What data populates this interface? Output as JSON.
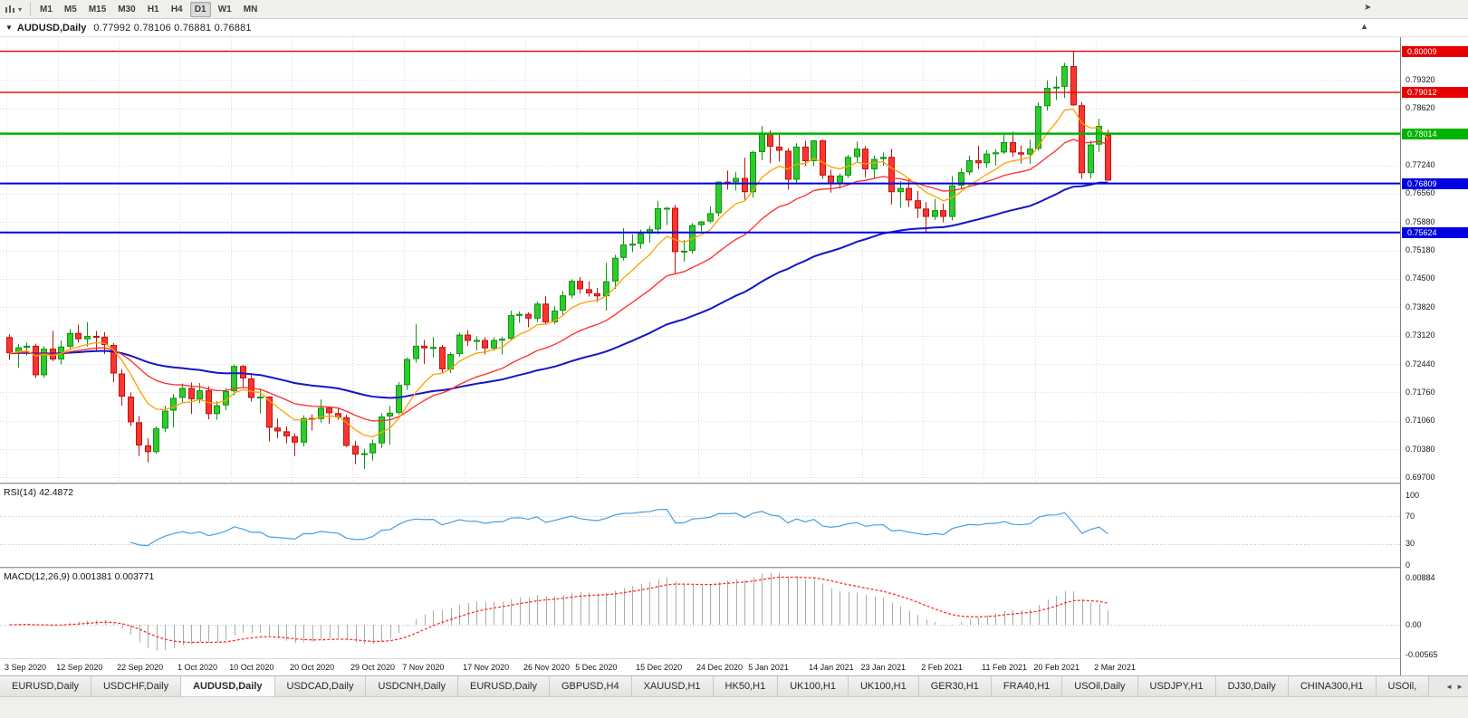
{
  "toolbar": {
    "timeframes": [
      "M1",
      "M5",
      "M15",
      "M30",
      "H1",
      "H4",
      "D1",
      "W1",
      "MN"
    ],
    "active_timeframe": "D1"
  },
  "icons": {
    "caret_down": "▾",
    "chart_menu_arrow": "▼",
    "titlebar_button": "▲",
    "chart_shift": "➤",
    "tab_scroll_left": "◄",
    "tab_scroll_right": "►"
  },
  "chart": {
    "symbol_title": "AUDUSD,Daily",
    "ohlc_text": "0.77992 0.78106 0.76881 0.76881"
  },
  "price_axis": {
    "ticks": [
      {
        "label": "0.79320",
        "value": 0.7932
      },
      {
        "label": "0.78620",
        "value": 0.7862
      },
      {
        "label": "0.77940",
        "value": 0.7794
      },
      {
        "label": "0.77240",
        "value": 0.7724
      },
      {
        "label": "0.76560",
        "value": 0.7656
      },
      {
        "label": "0.75880",
        "value": 0.7588
      },
      {
        "label": "0.75180",
        "value": 0.7518
      },
      {
        "label": "0.74500",
        "value": 0.745
      },
      {
        "label": "0.73820",
        "value": 0.7382
      },
      {
        "label": "0.73120",
        "value": 0.7312
      },
      {
        "label": "0.72440",
        "value": 0.7244
      },
      {
        "label": "0.71760",
        "value": 0.7176
      },
      {
        "label": "0.71060",
        "value": 0.7106
      },
      {
        "label": "0.70380",
        "value": 0.7038
      },
      {
        "label": "0.69700",
        "value": 0.697
      }
    ]
  },
  "time_axis": {
    "labels": [
      "3 Sep 2020",
      "12 Sep 2020",
      "22 Sep 2020",
      "1 Oct 2020",
      "10 Oct 2020",
      "20 Oct 2020",
      "29 Oct 2020",
      "7 Nov 2020",
      "17 Nov 2020",
      "26 Nov 2020",
      "5 Dec 2020",
      "15 Dec 2020",
      "24 Dec 2020",
      "5 Jan 2021",
      "14 Jan 2021",
      "23 Jan 2021",
      "2 Feb 2021",
      "11 Feb 2021",
      "20 Feb 2021",
      "2 Mar 2021"
    ],
    "candle_indices": [
      0,
      6,
      13,
      20,
      26,
      33,
      40,
      46,
      53,
      60,
      66,
      73,
      80,
      86,
      93,
      99,
      106,
      113,
      119,
      126
    ]
  },
  "indicators": {
    "rsi": {
      "header": "RSI(14) 42.4872",
      "value": 42.4872,
      "period": 14,
      "line_color": "#4a9ede",
      "guide_levels": [
        70,
        30
      ],
      "axis": [
        {
          "label": "100",
          "value": 100
        },
        {
          "label": "70",
          "value": 70
        },
        {
          "label": "30",
          "value": 30
        },
        {
          "label": "0",
          "value": 0
        }
      ]
    },
    "macd": {
      "header": "MACD(12,26,9) 0.001381 0.003771",
      "main_value": 0.001381,
      "signal_value": 0.003771,
      "params": [
        12,
        26,
        9
      ],
      "histogram_color": "#ababab",
      "signal_color": "#ff2020",
      "axis": [
        {
          "label": "0.00884",
          "value": 0.00884
        },
        {
          "label": "0.00",
          "value": 0
        },
        {
          "label": "-0.00565",
          "value": -0.00565
        }
      ]
    }
  },
  "tabs": {
    "items": [
      "EURUSD,Daily",
      "USDCHF,Daily",
      "AUDUSD,Daily",
      "USDCAD,Daily",
      "USDCNH,Daily",
      "EURUSD,Daily",
      "GBPUSD,H4",
      "XAUUSD,H1",
      "HK50,H1",
      "UK100,H1",
      "UK100,H1",
      "GER30,H1",
      "FRA40,H1",
      "USOil,Daily",
      "USDJPY,H1",
      "DJ30,Daily",
      "CHINA300,H1",
      "USOil,"
    ],
    "active_index": 2
  },
  "chart_data": {
    "type": "candlestick",
    "symbol": "AUDUSD",
    "timeframe": "Daily",
    "price_range": [
      0.6957,
      0.8035
    ],
    "bull": {
      "fill": "#2ecb2e",
      "border": "#129312"
    },
    "bear": {
      "fill": "#fa352f",
      "border": "#bd1511"
    },
    "levels": [
      {
        "label": "0.80009",
        "price": 0.80009,
        "color": "#e80000",
        "line_width": 1.4
      },
      {
        "label": "0.79012",
        "price": 0.79012,
        "color": "#e80000",
        "line_width": 1.4
      },
      {
        "label": "0.78014",
        "price": 0.78014,
        "color": "#00b400",
        "line_width": 2.4
      },
      {
        "label": "0.76809",
        "price": 0.76809,
        "color": "#0000e0",
        "line_width": 2
      },
      {
        "label": "0.75624",
        "price": 0.75624,
        "color": "#0000e0",
        "line_width": 2
      }
    ],
    "moving_averages": [
      {
        "period": 55,
        "color": "#1414c8",
        "width": 2
      },
      {
        "period": 21,
        "color": "#ff2a2a",
        "width": 1.3
      },
      {
        "period": 8,
        "color": "#ffa000",
        "width": 1.3
      }
    ],
    "candles": [
      [
        "3 Sep 2020",
        0.7309,
        0.7316,
        0.7254,
        0.727
      ],
      [
        "4 Sep 2020",
        0.727,
        0.7292,
        0.7235,
        0.7284
      ],
      [
        "7 Sep 2020",
        0.7284,
        0.7296,
        0.7264,
        0.7288
      ],
      [
        "8 Sep 2020",
        0.7288,
        0.7293,
        0.721,
        0.7217
      ],
      [
        "9 Sep 2020",
        0.7217,
        0.7287,
        0.7211,
        0.7281
      ],
      [
        "10 Sep 2020",
        0.7281,
        0.7324,
        0.7251,
        0.7255
      ],
      [
        "11 Sep 2020",
        0.7255,
        0.7301,
        0.7243,
        0.7286
      ],
      [
        "14 Sep 2020",
        0.7286,
        0.7329,
        0.7278,
        0.7319
      ],
      [
        "15 Sep 2020",
        0.7319,
        0.7339,
        0.7296,
        0.7304
      ],
      [
        "16 Sep 2020",
        0.7304,
        0.7345,
        0.7286,
        0.7312
      ],
      [
        "17 Sep 2020",
        0.7312,
        0.7324,
        0.7276,
        0.731
      ],
      [
        "18 Sep 2020",
        0.731,
        0.7321,
        0.7268,
        0.729
      ],
      [
        "21 Sep 2020",
        0.729,
        0.7295,
        0.72,
        0.7221
      ],
      [
        "22 Sep 2020",
        0.7221,
        0.7232,
        0.7143,
        0.7165
      ],
      [
        "23 Sep 2020",
        0.7165,
        0.7175,
        0.7094,
        0.7103
      ],
      [
        "24 Sep 2020",
        0.7103,
        0.7118,
        0.7021,
        0.7047
      ],
      [
        "25 Sep 2020",
        0.7047,
        0.7064,
        0.7006,
        0.7031
      ],
      [
        "28 Sep 2020",
        0.7031,
        0.7093,
        0.7026,
        0.7088
      ],
      [
        "29 Sep 2020",
        0.7088,
        0.7143,
        0.7079,
        0.7131
      ],
      [
        "30 Sep 2020",
        0.7131,
        0.7172,
        0.7091,
        0.7162
      ],
      [
        "1 Oct 2020",
        0.7162,
        0.7197,
        0.7149,
        0.7186
      ],
      [
        "2 Oct 2020",
        0.7186,
        0.7199,
        0.7123,
        0.7159
      ],
      [
        "5 Oct 2020",
        0.7159,
        0.7198,
        0.7149,
        0.718
      ],
      [
        "6 Oct 2020",
        0.718,
        0.719,
        0.711,
        0.7123
      ],
      [
        "7 Oct 2020",
        0.7123,
        0.7154,
        0.7109,
        0.7144
      ],
      [
        "8 Oct 2020",
        0.7144,
        0.7186,
        0.7132,
        0.7178
      ],
      [
        "9 Oct 2020",
        0.7178,
        0.7243,
        0.7168,
        0.7239
      ],
      [
        "12 Oct 2020",
        0.7239,
        0.7242,
        0.7187,
        0.7209
      ],
      [
        "13 Oct 2020",
        0.7209,
        0.7222,
        0.7153,
        0.7162
      ],
      [
        "14 Oct 2020",
        0.7162,
        0.7184,
        0.7124,
        0.7165
      ],
      [
        "15 Oct 2020",
        0.7165,
        0.7166,
        0.7057,
        0.709
      ],
      [
        "16 Oct 2020",
        0.709,
        0.7112,
        0.7064,
        0.7081
      ],
      [
        "19 Oct 2020",
        0.7081,
        0.7093,
        0.7052,
        0.7069
      ],
      [
        "20 Oct 2020",
        0.7069,
        0.7076,
        0.7021,
        0.7054
      ],
      [
        "21 Oct 2020",
        0.7054,
        0.712,
        0.7044,
        0.7113
      ],
      [
        "22 Oct 2020",
        0.7113,
        0.7122,
        0.7083,
        0.7111
      ],
      [
        "23 Oct 2020",
        0.7111,
        0.7158,
        0.7102,
        0.7138
      ],
      [
        "26 Oct 2020",
        0.7138,
        0.7141,
        0.7099,
        0.7125
      ],
      [
        "27 Oct 2020",
        0.7125,
        0.7139,
        0.7109,
        0.7115
      ],
      [
        "28 Oct 2020",
        0.7115,
        0.7121,
        0.7043,
        0.7046
      ],
      [
        "29 Oct 2020",
        0.7046,
        0.7058,
        0.7002,
        0.7025
      ],
      [
        "30 Oct 2020",
        0.7025,
        0.7039,
        0.699,
        0.7028
      ],
      [
        "2 Nov 2020",
        0.7028,
        0.7061,
        0.701,
        0.7052
      ],
      [
        "3 Nov 2020",
        0.7052,
        0.7125,
        0.7041,
        0.7117
      ],
      [
        "4 Nov 2020",
        0.7117,
        0.7143,
        0.7049,
        0.7126
      ],
      [
        "5 Nov 2020",
        0.7126,
        0.72,
        0.7121,
        0.7193
      ],
      [
        "6 Nov 2020",
        0.7193,
        0.726,
        0.7181,
        0.7256
      ],
      [
        "9 Nov 2020",
        0.7256,
        0.734,
        0.7247,
        0.7288
      ],
      [
        "10 Nov 2020",
        0.7288,
        0.7302,
        0.7244,
        0.7282
      ],
      [
        "11 Nov 2020",
        0.7282,
        0.7309,
        0.726,
        0.7285
      ],
      [
        "12 Nov 2020",
        0.7285,
        0.729,
        0.7221,
        0.7231
      ],
      [
        "13 Nov 2020",
        0.7231,
        0.7273,
        0.7222,
        0.7268
      ],
      [
        "16 Nov 2020",
        0.7268,
        0.732,
        0.7262,
        0.7315
      ],
      [
        "17 Nov 2020",
        0.7315,
        0.7326,
        0.7288,
        0.73
      ],
      [
        "18 Nov 2020",
        0.73,
        0.7311,
        0.7277,
        0.7302
      ],
      [
        "19 Nov 2020",
        0.7302,
        0.7309,
        0.7267,
        0.7282
      ],
      [
        "20 Nov 2020",
        0.7282,
        0.7309,
        0.7276,
        0.7302
      ],
      [
        "23 Nov 2020",
        0.7302,
        0.731,
        0.7267,
        0.7305
      ],
      [
        "24 Nov 2020",
        0.7305,
        0.7373,
        0.7301,
        0.7362
      ],
      [
        "25 Nov 2020",
        0.7362,
        0.7371,
        0.7344,
        0.7365
      ],
      [
        "26 Nov 2020",
        0.7365,
        0.7369,
        0.7333,
        0.7354
      ],
      [
        "27 Nov 2020",
        0.7354,
        0.7395,
        0.7345,
        0.739
      ],
      [
        "30 Nov 2020",
        0.739,
        0.7408,
        0.7339,
        0.7345
      ],
      [
        "1 Dec 2020",
        0.7345,
        0.7384,
        0.734,
        0.7373
      ],
      [
        "2 Dec 2020",
        0.7373,
        0.742,
        0.7363,
        0.741
      ],
      [
        "3 Dec 2020",
        0.741,
        0.7449,
        0.7403,
        0.7445
      ],
      [
        "4 Dec 2020",
        0.7445,
        0.7454,
        0.7414,
        0.7425
      ],
      [
        "7 Dec 2020",
        0.7425,
        0.7444,
        0.7407,
        0.7415
      ],
      [
        "8 Dec 2020",
        0.7415,
        0.7428,
        0.7394,
        0.7408
      ],
      [
        "9 Dec 2020",
        0.7408,
        0.7489,
        0.7373,
        0.7444
      ],
      [
        "10 Dec 2020",
        0.7444,
        0.7508,
        0.7426,
        0.7501
      ],
      [
        "11 Dec 2020",
        0.7501,
        0.7573,
        0.7495,
        0.7533
      ],
      [
        "14 Dec 2020",
        0.7533,
        0.7558,
        0.7515,
        0.7535
      ],
      [
        "15 Dec 2020",
        0.7535,
        0.7569,
        0.7523,
        0.756
      ],
      [
        "16 Dec 2020",
        0.756,
        0.7578,
        0.7538,
        0.757
      ],
      [
        "17 Dec 2020",
        0.757,
        0.7639,
        0.7558,
        0.7621
      ],
      [
        "18 Dec 2020",
        0.7621,
        0.7624,
        0.758,
        0.7622
      ],
      [
        "21 Dec 2020",
        0.7622,
        0.7629,
        0.7462,
        0.7515
      ],
      [
        "22 Dec 2020",
        0.7515,
        0.7544,
        0.7492,
        0.7518
      ],
      [
        "23 Dec 2020",
        0.7518,
        0.7585,
        0.7511,
        0.758
      ],
      [
        "24 Dec 2020",
        0.758,
        0.759,
        0.7565,
        0.7589
      ],
      [
        "28 Dec 2020",
        0.7589,
        0.7625,
        0.7585,
        0.7609
      ],
      [
        "29 Dec 2020",
        0.7609,
        0.7686,
        0.7601,
        0.7685
      ],
      [
        "30 Dec 2020",
        0.7685,
        0.7712,
        0.7666,
        0.7684
      ],
      [
        "31 Dec 2020",
        0.7684,
        0.7709,
        0.7664,
        0.7694
      ],
      [
        "4 Jan 2021",
        0.7694,
        0.7743,
        0.7642,
        0.766
      ],
      [
        "5 Jan 2021",
        0.766,
        0.776,
        0.7647,
        0.7757
      ],
      [
        "6 Jan 2021",
        0.7757,
        0.782,
        0.7737,
        0.7803
      ],
      [
        "7 Jan 2021",
        0.7803,
        0.7809,
        0.773,
        0.777
      ],
      [
        "8 Jan 2021",
        0.777,
        0.78,
        0.7734,
        0.776
      ],
      [
        "11 Jan 2021",
        0.776,
        0.7766,
        0.7666,
        0.769
      ],
      [
        "12 Jan 2021",
        0.769,
        0.7778,
        0.7681,
        0.777
      ],
      [
        "13 Jan 2021",
        0.777,
        0.7784,
        0.7724,
        0.7735
      ],
      [
        "14 Jan 2021",
        0.7735,
        0.7785,
        0.7723,
        0.7785
      ],
      [
        "15 Jan 2021",
        0.7785,
        0.7787,
        0.7692,
        0.77
      ],
      [
        "18 Jan 2021",
        0.77,
        0.7714,
        0.7659,
        0.768
      ],
      [
        "19 Jan 2021",
        0.768,
        0.7705,
        0.7668,
        0.77
      ],
      [
        "20 Jan 2021",
        0.77,
        0.775,
        0.7694,
        0.7745
      ],
      [
        "21 Jan 2021",
        0.7745,
        0.7782,
        0.7732,
        0.7765
      ],
      [
        "22 Jan 2021",
        0.7765,
        0.7771,
        0.7696,
        0.7715
      ],
      [
        "25 Jan 2021",
        0.7715,
        0.7748,
        0.7694,
        0.774
      ],
      [
        "26 Jan 2021",
        0.774,
        0.7756,
        0.7724,
        0.7745
      ],
      [
        "27 Jan 2021",
        0.7745,
        0.7764,
        0.763,
        0.766
      ],
      [
        "28 Jan 2021",
        0.766,
        0.7686,
        0.7622,
        0.767
      ],
      [
        "29 Jan 2021",
        0.767,
        0.7693,
        0.7624,
        0.764
      ],
      [
        "1 Feb 2021",
        0.764,
        0.7663,
        0.7597,
        0.762
      ],
      [
        "2 Feb 2021",
        0.762,
        0.7636,
        0.7563,
        0.76
      ],
      [
        "3 Feb 2021",
        0.76,
        0.7644,
        0.7592,
        0.7616
      ],
      [
        "4 Feb 2021",
        0.7616,
        0.7632,
        0.7587,
        0.76
      ],
      [
        "5 Feb 2021",
        0.76,
        0.7699,
        0.7591,
        0.7676
      ],
      [
        "8 Feb 2021",
        0.7676,
        0.7718,
        0.7669,
        0.7708
      ],
      [
        "9 Feb 2021",
        0.7708,
        0.7748,
        0.7701,
        0.7737
      ],
      [
        "10 Feb 2021",
        0.7737,
        0.7772,
        0.7716,
        0.773
      ],
      [
        "11 Feb 2021",
        0.773,
        0.7761,
        0.7719,
        0.7753
      ],
      [
        "12 Feb 2021",
        0.7753,
        0.7764,
        0.7724,
        0.7756
      ],
      [
        "15 Feb 2021",
        0.7756,
        0.7799,
        0.7752,
        0.7781
      ],
      [
        "16 Feb 2021",
        0.7781,
        0.7806,
        0.7746,
        0.7756
      ],
      [
        "17 Feb 2021",
        0.7756,
        0.7773,
        0.7729,
        0.7751
      ],
      [
        "18 Feb 2021",
        0.7751,
        0.7787,
        0.7728,
        0.7765
      ],
      [
        "19 Feb 2021",
        0.7765,
        0.7877,
        0.776,
        0.7868
      ],
      [
        "22 Feb 2021",
        0.7868,
        0.793,
        0.7857,
        0.7912
      ],
      [
        "23 Feb 2021",
        0.7912,
        0.794,
        0.7883,
        0.7915
      ],
      [
        "24 Feb 2021",
        0.7915,
        0.7973,
        0.7888,
        0.7965
      ],
      [
        "25 Feb 2021",
        0.7965,
        0.80009,
        0.7869,
        0.787
      ],
      [
        "26 Feb 2021",
        0.787,
        0.7878,
        0.7692,
        0.7706
      ],
      [
        "1 Mar 2021",
        0.7706,
        0.7784,
        0.7693,
        0.7775
      ],
      [
        "2 Mar 2021",
        0.7775,
        0.7838,
        0.7757,
        0.782
      ],
      [
        "3 Mar 2021",
        0.77992,
        0.78106,
        0.76881,
        0.76881
      ]
    ]
  }
}
